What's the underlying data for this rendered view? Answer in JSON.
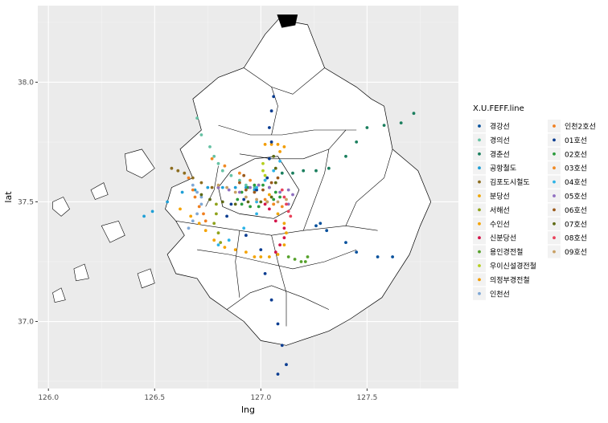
{
  "chart_data": {
    "type": "scatter",
    "xlabel": "lng",
    "ylabel": "lat",
    "xlim": [
      125.95,
      127.93
    ],
    "ylim": [
      36.72,
      38.32
    ],
    "x_ticks": [
      126.0,
      126.5,
      127.0,
      127.5
    ],
    "x_tick_labels": [
      "126.0",
      "126.5",
      "127.0",
      "127.5"
    ],
    "y_ticks": [
      37.0,
      37.5,
      38.0
    ],
    "y_tick_labels": [
      "37.0",
      "37.5",
      "38.0"
    ],
    "grid": true,
    "legend_position": "right",
    "legend_title": "X.U.FEFF.line",
    "background": "#ebebeb",
    "map_fill": "#ffffff",
    "map_stroke": "#000000",
    "series": [
      {
        "name": "경강선",
        "color": "#08519c",
        "points": [
          [
            127.28,
            37.41
          ],
          [
            127.26,
            37.4
          ],
          [
            127.31,
            37.38
          ],
          [
            127.4,
            37.33
          ],
          [
            127.45,
            37.29
          ],
          [
            127.55,
            37.27
          ],
          [
            127.62,
            37.27
          ]
        ]
      },
      {
        "name": "경의선",
        "color": "#66c2a4",
        "points": [
          [
            126.7,
            37.85
          ],
          [
            126.72,
            37.78
          ],
          [
            126.76,
            37.73
          ],
          [
            126.78,
            37.69
          ],
          [
            126.8,
            37.66
          ],
          [
            126.82,
            37.63
          ],
          [
            126.86,
            37.61
          ],
          [
            126.9,
            37.59
          ],
          [
            126.93,
            37.57
          ],
          [
            126.97,
            37.56
          ]
        ]
      },
      {
        "name": "경춘선",
        "color": "#1b7f5e",
        "points": [
          [
            127.1,
            37.62
          ],
          [
            127.15,
            37.62
          ],
          [
            127.2,
            37.63
          ],
          [
            127.26,
            37.63
          ],
          [
            127.32,
            37.64
          ],
          [
            127.4,
            37.69
          ],
          [
            127.45,
            37.75
          ],
          [
            127.5,
            37.81
          ],
          [
            127.58,
            37.82
          ],
          [
            127.66,
            37.83
          ],
          [
            127.72,
            37.87
          ]
        ]
      },
      {
        "name": "공항철도",
        "color": "#1f9fd6",
        "points": [
          [
            126.45,
            37.44
          ],
          [
            126.49,
            37.46
          ],
          [
            126.56,
            37.5
          ],
          [
            126.63,
            37.54
          ],
          [
            126.69,
            37.55
          ],
          [
            126.75,
            37.56
          ],
          [
            126.82,
            37.56
          ],
          [
            126.88,
            37.56
          ],
          [
            126.93,
            37.56
          ],
          [
            126.97,
            37.55
          ]
        ]
      },
      {
        "name": "김포도시철도",
        "color": "#8c6d1f",
        "points": [
          [
            126.58,
            37.64
          ],
          [
            126.61,
            37.63
          ],
          [
            126.64,
            37.62
          ],
          [
            126.68,
            37.6
          ],
          [
            126.72,
            37.58
          ],
          [
            126.77,
            37.56
          ],
          [
            126.8,
            37.56
          ]
        ]
      },
      {
        "name": "분당선",
        "color": "#f0a500",
        "points": [
          [
            127.04,
            37.53
          ],
          [
            127.06,
            37.49
          ],
          [
            127.08,
            37.45
          ],
          [
            127.11,
            37.41
          ],
          [
            127.12,
            37.37
          ],
          [
            127.11,
            37.32
          ],
          [
            127.08,
            37.28
          ],
          [
            127.04,
            37.27
          ],
          [
            127.0,
            37.27
          ]
        ]
      },
      {
        "name": "서해선",
        "color": "#8fa31b",
        "points": [
          [
            126.79,
            37.49
          ],
          [
            126.79,
            37.45
          ],
          [
            126.78,
            37.41
          ],
          [
            126.8,
            37.37
          ],
          [
            126.81,
            37.33
          ]
        ]
      },
      {
        "name": "수인선",
        "color": "#f5a300",
        "points": [
          [
            126.62,
            37.47
          ],
          [
            126.67,
            37.44
          ],
          [
            126.71,
            37.41
          ],
          [
            126.74,
            37.38
          ],
          [
            126.78,
            37.34
          ],
          [
            126.83,
            37.31
          ],
          [
            126.88,
            37.3
          ],
          [
            126.93,
            37.29
          ],
          [
            126.97,
            37.27
          ]
        ]
      },
      {
        "name": "신분당선",
        "color": "#d4144a",
        "points": [
          [
            127.02,
            37.49
          ],
          [
            127.04,
            37.47
          ],
          [
            127.07,
            37.42
          ],
          [
            127.11,
            37.39
          ],
          [
            127.11,
            37.35
          ],
          [
            127.09,
            37.32
          ],
          [
            127.07,
            37.29
          ]
        ]
      },
      {
        "name": "용인경전철",
        "color": "#56a12b",
        "points": [
          [
            127.13,
            37.27
          ],
          [
            127.16,
            37.26
          ],
          [
            127.19,
            37.25
          ],
          [
            127.21,
            37.25
          ],
          [
            127.22,
            37.27
          ]
        ]
      },
      {
        "name": "우이신설경전철",
        "color": "#b4cf1e",
        "points": [
          [
            127.01,
            37.66
          ],
          [
            127.01,
            37.63
          ],
          [
            127.02,
            37.61
          ],
          [
            127.02,
            37.59
          ]
        ]
      },
      {
        "name": "의정부경전철",
        "color": "#f29c00",
        "points": [
          [
            127.02,
            37.74
          ],
          [
            127.05,
            37.74
          ],
          [
            127.08,
            37.74
          ],
          [
            127.11,
            37.73
          ],
          [
            127.09,
            37.71
          ]
        ]
      },
      {
        "name": "인천선",
        "color": "#7fa8d6",
        "points": [
          [
            126.68,
            37.57
          ],
          [
            126.7,
            37.54
          ],
          [
            126.72,
            37.52
          ],
          [
            126.72,
            37.49
          ],
          [
            126.7,
            37.45
          ],
          [
            126.68,
            37.42
          ],
          [
            126.66,
            37.39
          ]
        ]
      },
      {
        "name": "인천2호선",
        "color": "#f07f1f",
        "points": [
          [
            126.66,
            37.6
          ],
          [
            126.68,
            37.55
          ],
          [
            126.69,
            37.52
          ],
          [
            126.71,
            37.48
          ],
          [
            126.73,
            37.45
          ],
          [
            126.74,
            37.42
          ]
        ]
      },
      {
        "name": "01호선",
        "color": "#0b3d91",
        "points": [
          [
            127.06,
            37.94
          ],
          [
            127.05,
            37.88
          ],
          [
            127.04,
            37.81
          ],
          [
            127.05,
            37.75
          ],
          [
            127.04,
            37.68
          ],
          [
            127.03,
            37.6
          ],
          [
            126.98,
            37.55
          ],
          [
            126.92,
            37.51
          ],
          [
            126.86,
            37.49
          ],
          [
            126.84,
            37.44
          ],
          [
            126.93,
            37.36
          ],
          [
            127.0,
            37.3
          ],
          [
            127.02,
            37.2
          ],
          [
            127.05,
            37.09
          ],
          [
            127.08,
            36.99
          ],
          [
            127.1,
            36.9
          ],
          [
            127.12,
            36.82
          ],
          [
            127.08,
            36.78
          ]
        ]
      },
      {
        "name": "02호선",
        "color": "#2a9b3c",
        "points": [
          [
            126.94,
            37.56
          ],
          [
            126.97,
            37.57
          ],
          [
            127.01,
            37.57
          ],
          [
            127.04,
            37.56
          ],
          [
            127.07,
            37.54
          ],
          [
            127.09,
            37.52
          ],
          [
            127.06,
            37.51
          ],
          [
            127.03,
            37.5
          ],
          [
            126.99,
            37.48
          ],
          [
            126.95,
            37.48
          ],
          [
            126.91,
            37.49
          ],
          [
            126.89,
            37.51
          ],
          [
            126.91,
            37.54
          ]
        ]
      },
      {
        "name": "03호선",
        "color": "#f08a24",
        "points": [
          [
            126.77,
            37.68
          ],
          [
            126.83,
            37.65
          ],
          [
            126.9,
            37.62
          ],
          [
            126.95,
            37.59
          ],
          [
            126.99,
            37.57
          ],
          [
            127.02,
            37.51
          ],
          [
            127.06,
            37.49
          ],
          [
            127.1,
            37.48
          ]
        ]
      },
      {
        "name": "04호선",
        "color": "#2db3e6",
        "points": [
          [
            127.09,
            37.67
          ],
          [
            127.06,
            37.63
          ],
          [
            127.02,
            37.59
          ],
          [
            126.98,
            37.56
          ],
          [
            126.98,
            37.5
          ],
          [
            126.98,
            37.45
          ],
          [
            126.92,
            37.39
          ],
          [
            126.85,
            37.34
          ],
          [
            126.8,
            37.32
          ]
        ]
      },
      {
        "name": "05호선",
        "color": "#8f6fc0",
        "points": [
          [
            126.8,
            37.56
          ],
          [
            126.85,
            37.55
          ],
          [
            126.9,
            37.54
          ],
          [
            126.95,
            37.56
          ],
          [
            126.99,
            37.57
          ],
          [
            127.04,
            37.56
          ],
          [
            127.09,
            37.54
          ],
          [
            127.13,
            37.55
          ],
          [
            127.15,
            37.53
          ],
          [
            127.13,
            37.49
          ]
        ]
      },
      {
        "name": "06호선",
        "color": "#9b5a1b",
        "points": [
          [
            126.92,
            37.61
          ],
          [
            126.9,
            37.58
          ],
          [
            126.93,
            37.55
          ],
          [
            126.97,
            37.54
          ],
          [
            127.01,
            37.55
          ],
          [
            127.05,
            37.58
          ],
          [
            127.08,
            37.6
          ]
        ]
      },
      {
        "name": "07호선",
        "color": "#5e6a14",
        "points": [
          [
            127.06,
            37.69
          ],
          [
            127.07,
            37.64
          ],
          [
            127.07,
            37.58
          ],
          [
            127.05,
            37.52
          ],
          [
            127.0,
            37.5
          ],
          [
            126.94,
            37.5
          ],
          [
            126.88,
            37.49
          ],
          [
            126.82,
            37.5
          ],
          [
            126.76,
            37.51
          ],
          [
            126.72,
            37.53
          ]
        ]
      },
      {
        "name": "08호선",
        "color": "#e9425c",
        "points": [
          [
            127.1,
            37.55
          ],
          [
            127.11,
            37.52
          ],
          [
            127.12,
            37.49
          ],
          [
            127.13,
            37.46
          ],
          [
            127.14,
            37.44
          ]
        ]
      },
      {
        "name": "09호선",
        "color": "#c8a064",
        "points": [
          [
            126.8,
            37.57
          ],
          [
            126.84,
            37.56
          ],
          [
            126.88,
            37.54
          ],
          [
            126.93,
            37.52
          ],
          [
            126.98,
            37.51
          ],
          [
            127.03,
            37.5
          ],
          [
            127.08,
            37.5
          ],
          [
            127.12,
            37.51
          ]
        ]
      }
    ]
  }
}
